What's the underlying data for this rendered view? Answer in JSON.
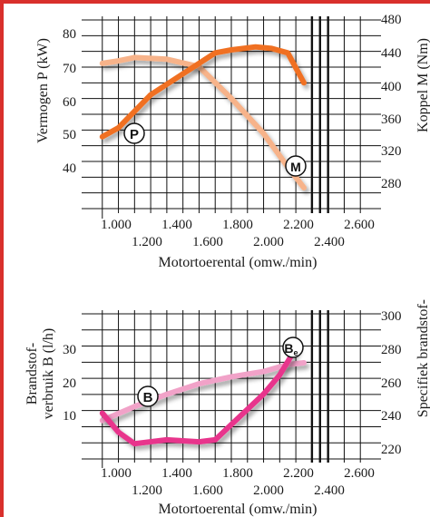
{
  "theme": {
    "frame_color": "#d9302c",
    "power_color": "#f07022",
    "torque_color": "#f7b38a",
    "consumption_color": "#e8348c",
    "specific_color": "#f1a2c8"
  },
  "chart_data": [
    {
      "type": "line",
      "xlabel": "Motortoerental (omw./min)",
      "ylabel": "Vermogen P (kW)",
      "y2label": "Koppel M (Nm)",
      "x_ticks_top": [
        "1.000",
        "1.400",
        "1.800",
        "2.200",
        "2.600"
      ],
      "x_ticks_bottom": [
        "1.200",
        "1.600",
        "2.000",
        "2.400"
      ],
      "y_ticks": [
        "30",
        "40",
        "50",
        "60",
        "70",
        "80"
      ],
      "y2_ticks": [
        "280",
        "320",
        "360",
        "400",
        "440",
        "480"
      ],
      "xlim": [
        900,
        2700
      ],
      "ylim": [
        23,
        86
      ],
      "y2lim": [
        258,
        484
      ],
      "series": [
        {
          "name": "P",
          "axis": "left",
          "x": [
            1000,
            1100,
            1300,
            1500,
            1700,
            1800,
            1950,
            2050,
            2150,
            2250
          ],
          "y": [
            47,
            50,
            61,
            68,
            75,
            76,
            77,
            76.5,
            75,
            65
          ]
        },
        {
          "name": "M",
          "axis": "right",
          "x": [
            1000,
            1100,
            1200,
            1400,
            1600,
            1800,
            2000,
            2150,
            2250
          ],
          "y": [
            432,
            435,
            439,
            437,
            428,
            390,
            348,
            308,
            283
          ]
        }
      ]
    },
    {
      "type": "line",
      "xlabel": "Motortoerental (omw./min)",
      "ylabel_line1": "Brandstof-",
      "ylabel_line2": "verbruik B (l/h)",
      "y2label": "Specifiek brandstof-",
      "x_ticks_top": [
        "1.000",
        "1.400",
        "1.800",
        "2.200",
        "2.600"
      ],
      "x_ticks_bottom": [
        "1.200",
        "1.600",
        "2.000",
        "2.400"
      ],
      "y_ticks": [
        "10",
        "20",
        "30"
      ],
      "y2_ticks": [
        "220",
        "240",
        "260",
        "280",
        "300"
      ],
      "xlim": [
        900,
        2700
      ],
      "ylim": [
        -1,
        37
      ],
      "y2lim": [
        219,
        302
      ],
      "series": [
        {
          "name": "B",
          "axis": "left",
          "x": [
            1000,
            1100,
            1200,
            1400,
            1600,
            1700,
            1800,
            2000,
            2100,
            2200
          ],
          "y": [
            11,
            6,
            3,
            4,
            3.5,
            4,
            8,
            16,
            21,
            28
          ]
        },
        {
          "name": "Be",
          "axis": "right",
          "x": [
            1000,
            1100,
            1200,
            1400,
            1600,
            1800,
            2000,
            2150,
            2250
          ],
          "y": [
            241,
            245,
            249,
            256,
            262,
            266,
            269,
            273,
            274
          ]
        }
      ]
    }
  ]
}
